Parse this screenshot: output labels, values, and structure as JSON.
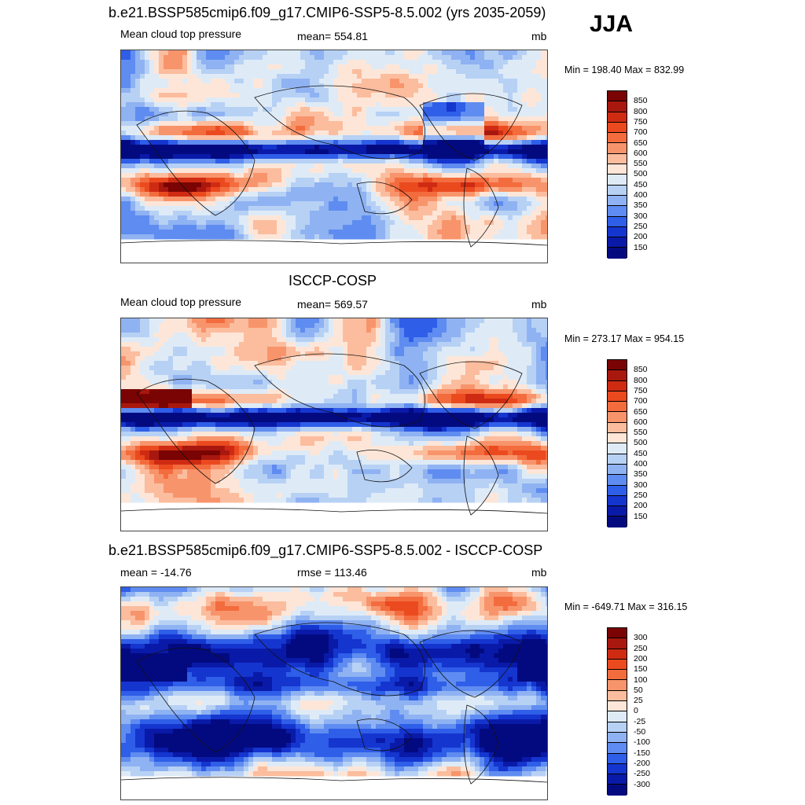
{
  "season": "JJA",
  "panels": [
    {
      "title": "b.e21.BSSP585cmip6.f09_g17.CMIP6-SSP5-8.5.002 (yrs 2035-2059)",
      "left_label": "Mean cloud top pressure",
      "center_label": "mean= 554.81",
      "units": "mb",
      "minmax": "Min = 198.40 Max = 832.99",
      "levels": [
        "850",
        "800",
        "750",
        "700",
        "650",
        "600",
        "550",
        "500",
        "450",
        "400",
        "350",
        "300",
        "250",
        "200",
        "150"
      ]
    },
    {
      "title": "ISCCP-COSP",
      "left_label": "Mean cloud top pressure",
      "center_label": "mean= 569.57",
      "units": "mb",
      "minmax": "Min = 273.17 Max = 954.15",
      "levels": [
        "850",
        "800",
        "750",
        "700",
        "650",
        "600",
        "550",
        "500",
        "450",
        "400",
        "350",
        "300",
        "250",
        "200",
        "150"
      ]
    },
    {
      "title": "b.e21.BSSP585cmip6.f09_g17.CMIP6-SSP5-8.5.002 - ISCCP-COSP",
      "left_label": "mean = -14.76",
      "center_label": "rmse = 113.46",
      "units": "mb",
      "minmax": "Min = -649.71 Max = 316.15",
      "levels": [
        "300",
        "250",
        "200",
        "150",
        "100",
        "50",
        "25",
        "0",
        "-25",
        "-50",
        "-100",
        "-150",
        "-200",
        "-250",
        "-300"
      ]
    }
  ],
  "colormap": [
    "#7a0403",
    "#a8180f",
    "#cf2b13",
    "#eb4a1f",
    "#f36c3e",
    "#f8946b",
    "#fbbd9e",
    "#fde6d8",
    "#deebf7",
    "#b7d1f5",
    "#8fb2f2",
    "#5f8cf0",
    "#2f5ee8",
    "#1535cf",
    "#0a1aa8",
    "#030a80"
  ],
  "legend_colors": [
    "#7a0403",
    "#a8180f",
    "#cf2b13",
    "#eb4a1f",
    "#f36c3e",
    "#f8946b",
    "#fbbd9e",
    "#fde6d8",
    "#deebf7",
    "#b7d1f5",
    "#8fb2f2",
    "#5f8cf0",
    "#2f5ee8",
    "#1535cf",
    "#0a1aa8",
    "#030a80"
  ]
}
